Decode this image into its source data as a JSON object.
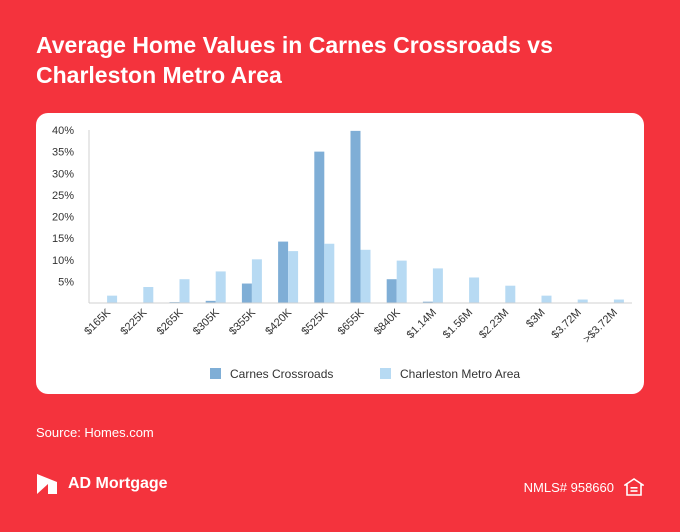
{
  "page": {
    "title": "Average Home Values in Carnes Crossroads vs Charleston Metro Area",
    "source": "Source: Homes.com",
    "brand": "AD Mortgage",
    "nmls": "NMLS# 958660"
  },
  "colors": {
    "background": "#F4333D",
    "card": "#FFFFFF",
    "series1": "#7FAED6",
    "series2": "#B7DAF3"
  },
  "icons": [
    "ad-mortgage-logo-icon",
    "equal-housing-icon"
  ],
  "chart_data": {
    "type": "bar",
    "title": "Average Home Values in Carnes Crossroads vs Charleston Metro Area",
    "xlabel": "",
    "ylabel": "",
    "ylim": [
      0,
      40
    ],
    "yticks": [
      5,
      10,
      15,
      20,
      25,
      30,
      35,
      40
    ],
    "ytick_labels": [
      "5%",
      "10%",
      "15%",
      "20%",
      "25%",
      "30%",
      "35%",
      "40%"
    ],
    "grid": false,
    "legend_position": "bottom",
    "categories": [
      "$165K",
      "$225K",
      "$265K",
      "$305K",
      "$355K",
      "$420K",
      "$525K",
      "$655K",
      "$840K",
      "$1.14M",
      "$1.56M",
      "$2.23M",
      "$3M",
      "$3.72M",
      ">$3.72M"
    ],
    "series": [
      {
        "name": "Carnes Crossroads",
        "color": "#7FAED6",
        "values": [
          0,
          0,
          0.2,
          0.5,
          4.5,
          14.2,
          35,
          39.8,
          5.5,
          0.3,
          0,
          0,
          0,
          0,
          0
        ]
      },
      {
        "name": "Charleston Metro Area",
        "color": "#B7DAF3",
        "values": [
          1.7,
          3.7,
          5.5,
          7.3,
          10.1,
          12,
          13.7,
          12.3,
          9.8,
          8,
          5.9,
          4,
          1.7,
          0.8,
          0.8
        ]
      }
    ]
  }
}
